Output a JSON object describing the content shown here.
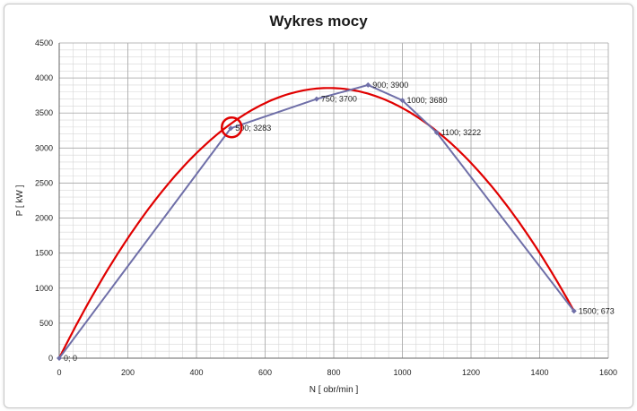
{
  "chart_data": {
    "type": "line",
    "title": "Wykres mocy",
    "xlabel": "N   [ obr/min ]",
    "ylabel": "P   [ kW ]",
    "xlim": [
      0,
      1600
    ],
    "ylim": [
      0,
      4500
    ],
    "xticks": [
      0,
      200,
      400,
      600,
      800,
      1000,
      1200,
      1400,
      1600
    ],
    "yticks": [
      0,
      500,
      1000,
      1500,
      2000,
      2500,
      3000,
      3500,
      4000,
      4500
    ],
    "grid": true,
    "legend": "none",
    "series": [
      {
        "color": "#6f6fa8",
        "marker": "diamond",
        "points": [
          {
            "x": 0,
            "y": 0,
            "label": "0; 0"
          },
          {
            "x": 500,
            "y": 3283,
            "label": "500; 3283"
          },
          {
            "x": 750,
            "y": 3700,
            "label": "750; 3700"
          },
          {
            "x": 900,
            "y": 3900,
            "label": "900; 3900"
          },
          {
            "x": 1000,
            "y": 3680,
            "label": "1000; 3680"
          },
          {
            "x": 1100,
            "y": 3222,
            "label": "1100; 3222"
          },
          {
            "x": 1500,
            "y": 673,
            "label": "1500; 673"
          }
        ]
      }
    ],
    "trendline": {
      "type": "polynomial-2",
      "color": "#e00000",
      "through": [
        [
          0,
          0
        ],
        [
          820,
          3850
        ],
        [
          1500,
          673
        ]
      ]
    },
    "annotation": {
      "type": "circle",
      "color": "#e00000",
      "at": {
        "x": 500,
        "y": 3283
      }
    }
  }
}
